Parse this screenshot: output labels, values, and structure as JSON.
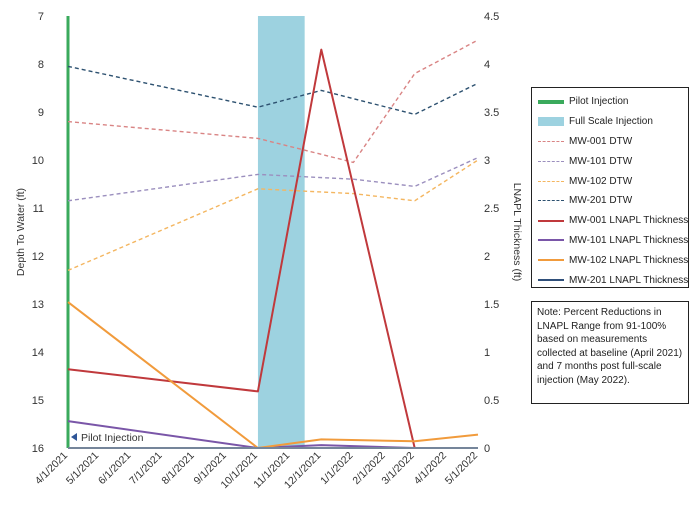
{
  "chart_data": {
    "type": "line",
    "ylabel": "Depth To Water (ft)",
    "y2label": "LNAPL Thickness (ft)",
    "xlabel": "",
    "categories": [
      "4/1/2021",
      "5/1/2021",
      "6/1/2021",
      "7/1/2021",
      "8/1/2021",
      "9/1/2021",
      "10/1/2021",
      "11/1/2021",
      "12/1/2021",
      "1/1/2022",
      "2/1/2022",
      "3/1/2022",
      "4/1/2022",
      "5/1/2022"
    ],
    "ylim": [
      7,
      16
    ],
    "y_reversed": true,
    "y_ticks": [
      "7",
      "8",
      "9",
      "10",
      "11",
      "12",
      "13",
      "14",
      "15",
      "16"
    ],
    "y2lim": [
      0,
      4.5
    ],
    "y2_ticks": [
      "0",
      "0.5",
      "1",
      "1.5",
      "2",
      "2.5",
      "3",
      "3.5",
      "4",
      "4.5"
    ],
    "grid": false,
    "legend_position": "right",
    "pilot_injection": {
      "date": "4/1/2021",
      "label": "Pilot Injection",
      "color": "#3aaa5c"
    },
    "full_scale_injection": {
      "start": "10/1/2021",
      "end": "11/15/2021",
      "label": "Full Scale Injection",
      "color": "#9dd2e0"
    },
    "series": [
      {
        "name": "MW-001 DTW",
        "axis": "left",
        "style": "dashed",
        "color": "#d98484",
        "points": [
          [
            "4/1/2021",
            9.2
          ],
          [
            "10/1/2021",
            9.55
          ],
          [
            "1/1/2022",
            10.05
          ],
          [
            "3/1/2022",
            8.2
          ],
          [
            "5/1/2022",
            7.5
          ]
        ]
      },
      {
        "name": "MW-101 DTW",
        "axis": "left",
        "style": "dashed",
        "color": "#9b8fbe",
        "points": [
          [
            "4/1/2021",
            10.85
          ],
          [
            "10/1/2021",
            10.3
          ],
          [
            "1/1/2022",
            10.4
          ],
          [
            "3/1/2022",
            10.55
          ],
          [
            "5/1/2022",
            9.95
          ]
        ]
      },
      {
        "name": "MW-102 DTW",
        "axis": "left",
        "style": "dashed",
        "color": "#f4b660",
        "points": [
          [
            "4/1/2021",
            12.3
          ],
          [
            "10/1/2021",
            10.6
          ],
          [
            "1/1/2022",
            10.7
          ],
          [
            "3/1/2022",
            10.85
          ],
          [
            "5/1/2022",
            10.0
          ]
        ]
      },
      {
        "name": "MW-201 DTW",
        "axis": "left",
        "style": "dashed",
        "color": "#2d5170",
        "points": [
          [
            "4/1/2021",
            8.05
          ],
          [
            "10/1/2021",
            8.9
          ],
          [
            "12/1/2021",
            8.55
          ],
          [
            "3/1/2022",
            9.05
          ],
          [
            "5/1/2022",
            8.4
          ]
        ]
      },
      {
        "name": "MW-001 LNAPL Thickness",
        "axis": "right",
        "style": "solid",
        "color": "#c0393c",
        "points": [
          [
            "4/1/2021",
            0.82
          ],
          [
            "10/1/2021",
            0.59
          ],
          [
            "12/1/2021",
            4.15
          ],
          [
            "3/1/2022",
            0.0
          ]
        ]
      },
      {
        "name": "MW-101 LNAPL Thickness",
        "axis": "right",
        "style": "solid",
        "color": "#7a56a8",
        "points": [
          [
            "4/1/2021",
            0.28
          ],
          [
            "10/1/2021",
            0.0
          ],
          [
            "12/1/2021",
            0.03
          ],
          [
            "3/1/2022",
            0.0
          ],
          [
            "5/1/2022",
            0.0
          ]
        ]
      },
      {
        "name": "MW-102 LNAPL Thickness",
        "axis": "right",
        "style": "solid",
        "color": "#f19b3c",
        "points": [
          [
            "4/1/2021",
            1.52
          ],
          [
            "10/1/2021",
            0.0
          ],
          [
            "12/1/2021",
            0.09
          ],
          [
            "3/1/2022",
            0.07
          ],
          [
            "5/1/2022",
            0.14
          ]
        ]
      },
      {
        "name": "MW-201 LNAPL Thickness",
        "axis": "right",
        "style": "solid",
        "color": "#2f4f7a",
        "points": [
          [
            "4/1/2021",
            0.0
          ],
          [
            "5/1/2022",
            0.0
          ]
        ]
      }
    ],
    "annotations": [
      {
        "text": "Pilot Injection",
        "at": "4/1/2021"
      }
    ]
  },
  "note": "Note: Percent Reductions in LNAPL Range from 91-100% based on measurements collected at baseline (April 2021) and 7 months post full-scale injection (May 2022)."
}
